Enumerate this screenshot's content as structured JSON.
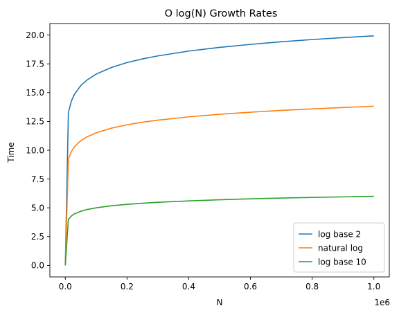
{
  "chart_data": {
    "type": "line",
    "title": "O log(N) Growth Rates",
    "xlabel": "N",
    "ylabel": "Time",
    "x_offset_label": "1e6",
    "xlim": [
      -0.05,
      1.05
    ],
    "ylim": [
      -1.0,
      21.0
    ],
    "x_ticks": [
      0.0,
      0.2,
      0.4,
      0.6,
      0.8,
      1.0
    ],
    "x_tick_labels": [
      "0.0",
      "0.2",
      "0.4",
      "0.6",
      "0.8",
      "1.0"
    ],
    "y_ticks": [
      0.0,
      2.5,
      5.0,
      7.5,
      10.0,
      12.5,
      15.0,
      17.5,
      20.0
    ],
    "y_tick_labels": [
      "0.0",
      "2.5",
      "5.0",
      "7.5",
      "10.0",
      "12.5",
      "15.0",
      "17.5",
      "20.0"
    ],
    "grid": false,
    "legend_position": "bottom-right",
    "series": [
      {
        "name": "log base 2",
        "color": "#1f77b4",
        "x": [
          0,
          0.01,
          0.02,
          0.03,
          0.05,
          0.07,
          0.1,
          0.15,
          0.2,
          0.25,
          0.3,
          0.4,
          0.5,
          0.6,
          0.7,
          0.8,
          0.9,
          1.0
        ],
        "y": [
          0,
          13.29,
          14.29,
          14.87,
          15.61,
          16.09,
          16.61,
          17.19,
          17.61,
          17.93,
          18.19,
          18.61,
          18.93,
          19.19,
          19.42,
          19.61,
          19.78,
          19.93
        ]
      },
      {
        "name": "natural log",
        "color": "#ff7f0e",
        "x": [
          0,
          0.01,
          0.02,
          0.03,
          0.05,
          0.07,
          0.1,
          0.15,
          0.2,
          0.25,
          0.3,
          0.4,
          0.5,
          0.6,
          0.7,
          0.8,
          0.9,
          1.0
        ],
        "y": [
          0,
          9.21,
          9.9,
          10.31,
          10.82,
          11.16,
          11.51,
          11.92,
          12.21,
          12.43,
          12.61,
          12.9,
          13.12,
          13.3,
          13.46,
          13.59,
          13.71,
          13.82
        ]
      },
      {
        "name": "log base 10",
        "color": "#2ca02c",
        "x": [
          0,
          0.01,
          0.02,
          0.03,
          0.05,
          0.07,
          0.1,
          0.15,
          0.2,
          0.25,
          0.3,
          0.4,
          0.5,
          0.6,
          0.7,
          0.8,
          0.9,
          1.0
        ],
        "y": [
          0,
          4.0,
          4.3,
          4.48,
          4.7,
          4.85,
          5.0,
          5.18,
          5.3,
          5.4,
          5.48,
          5.6,
          5.7,
          5.78,
          5.85,
          5.9,
          5.95,
          6.0
        ]
      }
    ]
  }
}
